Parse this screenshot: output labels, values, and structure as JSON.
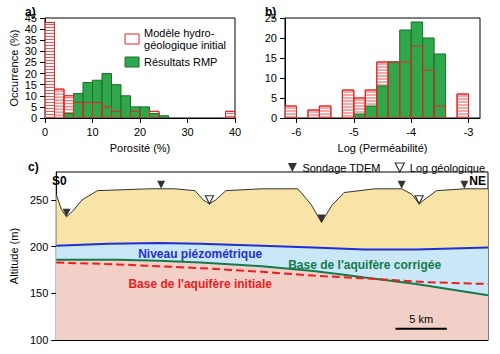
{
  "chart_data": [
    {
      "type": "histogram",
      "title": "a)",
      "xlabel": "Porosité (%)",
      "ylabel": "Occurrence (%)",
      "bins": [
        0,
        2,
        4,
        6,
        8,
        10,
        12,
        14,
        16,
        18,
        20,
        22,
        24,
        26,
        28,
        30,
        32,
        34,
        36,
        38,
        40
      ],
      "series": [
        {
          "name": "Modèle hydro-géologique initial",
          "color": "#e32626",
          "marker": "hatched",
          "values": [
            43,
            13,
            10,
            7,
            7,
            7,
            5,
            3,
            0,
            3,
            0,
            3,
            0,
            0,
            0,
            0,
            0,
            0,
            0,
            3
          ]
        },
        {
          "name": "Résultats RMP",
          "color": "#2ea84a",
          "marker": "filled",
          "values": [
            0,
            0,
            2,
            11,
            16,
            17,
            20,
            15,
            10,
            5,
            5,
            2,
            1,
            0,
            0,
            0,
            0,
            0,
            0,
            0
          ]
        }
      ],
      "xlim": [
        0,
        40
      ],
      "xticks": [
        0,
        10,
        20,
        30,
        40
      ],
      "ylim": [
        0,
        45
      ],
      "yticks": [
        0,
        5,
        10,
        15,
        20,
        25,
        30,
        35,
        40,
        45
      ],
      "grid": false,
      "legend": "top-right"
    },
    {
      "type": "histogram",
      "title": "b)",
      "xlabel": "Log (Perméabilité)",
      "bins": [
        -6.2,
        -6,
        -5.8,
        -5.6,
        -5.4,
        -5.2,
        -5,
        -4.8,
        -4.6,
        -4.4,
        -4.2,
        -4,
        -3.8,
        -3.6,
        -3.4,
        -3.2,
        -3,
        -2.8
      ],
      "series": [
        {
          "name": "Modèle hydro-géologique initial",
          "color": "#e32626",
          "marker": "hatched",
          "values": [
            3,
            0,
            2,
            3,
            0,
            7,
            5,
            7,
            14,
            14,
            14,
            18,
            12,
            3,
            0,
            6,
            0
          ]
        },
        {
          "name": "Résultats RMP",
          "color": "#2ea84a",
          "marker": "filled",
          "values": [
            0,
            0,
            0,
            0,
            0,
            0,
            1,
            3,
            8,
            14,
            22,
            24,
            20,
            16,
            0,
            0,
            0
          ]
        }
      ],
      "xlim": [
        -6.2,
        -2.8
      ],
      "xticks": [
        -6,
        -5,
        -4,
        -3
      ],
      "ylim": [
        0,
        25
      ],
      "yticks": [
        0,
        5,
        10,
        15,
        20,
        25
      ],
      "grid": false
    },
    {
      "type": "line",
      "title": "c)",
      "ylabel": "Altitude (m)",
      "annotations": [
        "S0",
        "NE"
      ],
      "scale_bar": {
        "value": 5,
        "label": "5 km"
      },
      "series": [
        {
          "type": "area",
          "color": "#333333",
          "x": [
            0,
            0.5,
            1,
            1.6,
            2.5,
            4,
            9,
            10.2,
            11.5,
            13.5,
            14.3,
            14.9,
            15.5,
            16.5,
            20,
            23.5,
            24.8,
            25.8,
            26.8,
            28,
            31,
            33.6,
            34.6,
            35.3,
            36,
            37,
            39.7,
            42
          ],
          "values": [
            256,
            240,
            232,
            238,
            250,
            260,
            262,
            262,
            262,
            260,
            250,
            246,
            250,
            260,
            262,
            262,
            245,
            226,
            244,
            258,
            262,
            262,
            256,
            246,
            252,
            260,
            262,
            262
          ]
        },
        {
          "name": "Niveau piézométrique",
          "type": "area",
          "color": "#1f2fd6",
          "x": [
            0,
            5,
            10,
            14,
            20,
            25,
            30,
            35,
            42
          ],
          "values": [
            201,
            203,
            204,
            203,
            201,
            199,
            197,
            197,
            199
          ]
        },
        {
          "name": "Base de l'aquifère corrigée",
          "type": "area",
          "color": "#137a4c",
          "x": [
            0,
            6,
            10,
            14,
            20,
            25,
            28,
            30,
            35,
            42
          ],
          "values": [
            186,
            186,
            185,
            183,
            179,
            174,
            170,
            167,
            160,
            148
          ]
        },
        {
          "name": "Base de l'aquifère initiale",
          "type": "line",
          "line_style": "dashed",
          "color": "#e8201e",
          "x": [
            0,
            6,
            10,
            14,
            20,
            25,
            30,
            36,
            42
          ],
          "values": [
            183,
            181,
            179,
            177,
            173,
            169,
            166,
            162,
            160
          ]
        },
        {
          "name": "Sondage TDEM",
          "type": "scatter",
          "marker": "triangle-down-filled",
          "color": "#000000",
          "x": [
            1,
            10.2,
            25.8,
            33.6,
            39.7
          ],
          "values": [
            232,
            262,
            226,
            262,
            262
          ]
        },
        {
          "name": "Log géologique",
          "type": "scatter",
          "marker": "triangle-down-open",
          "color": "#000000",
          "x": [
            14.9,
            35.3
          ],
          "values": [
            246,
            246
          ]
        }
      ],
      "xlim": [
        0,
        42
      ],
      "ylim": [
        100,
        280
      ],
      "yticks": [
        100,
        150,
        200,
        250
      ],
      "grid": false,
      "legend": "top",
      "tick_labels": "y"
    }
  ]
}
